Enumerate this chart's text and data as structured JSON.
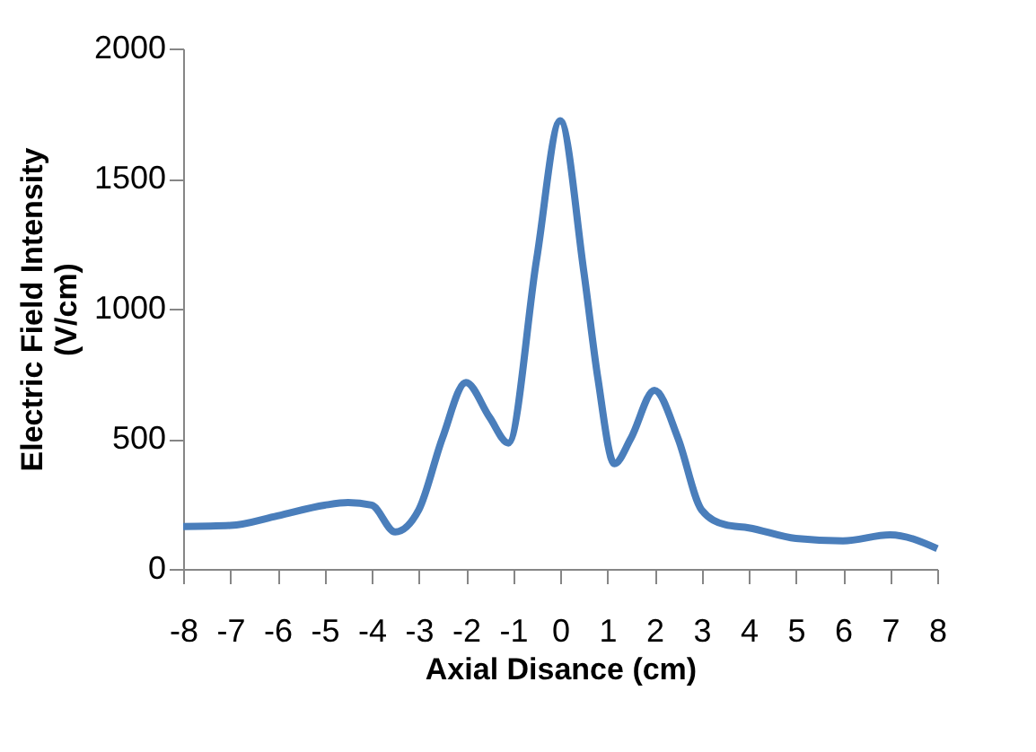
{
  "chart_data": {
    "type": "line",
    "xlabel": "Axial Disance (cm)",
    "ylabel": "Electric Field Intensity\n(V/cm)",
    "x": [
      -8,
      -7,
      -6,
      -5,
      -4.5,
      -4,
      -3.5,
      -3,
      -2.5,
      -2,
      -1.5,
      -1.1,
      -0.5,
      0,
      0.5,
      0.8,
      1.15,
      1.5,
      2,
      2.5,
      3,
      3.5,
      4,
      5,
      6,
      7,
      8
    ],
    "series": [
      {
        "color": "#4a7ebb",
        "values": [
          163,
          167,
          204,
          245,
          255,
          245,
          142,
          227,
          502,
          716,
          583,
          484,
          1190,
          1722,
          1144,
          732,
          404,
          502,
          686,
          502,
          227,
          170,
          158,
          117,
          108,
          131,
          78
        ]
      }
    ],
    "xlim": [
      -8,
      8
    ],
    "xticks": [
      -8,
      -7,
      -6,
      -5,
      -4,
      -3,
      -2,
      -1,
      0,
      1,
      2,
      3,
      4,
      5,
      6,
      7,
      8
    ],
    "ylim": [
      0,
      2000
    ],
    "yticks": [
      0,
      500,
      1000,
      1500,
      2000
    ],
    "grid": false,
    "legend": false,
    "marker": "none",
    "line_style": "solid"
  }
}
